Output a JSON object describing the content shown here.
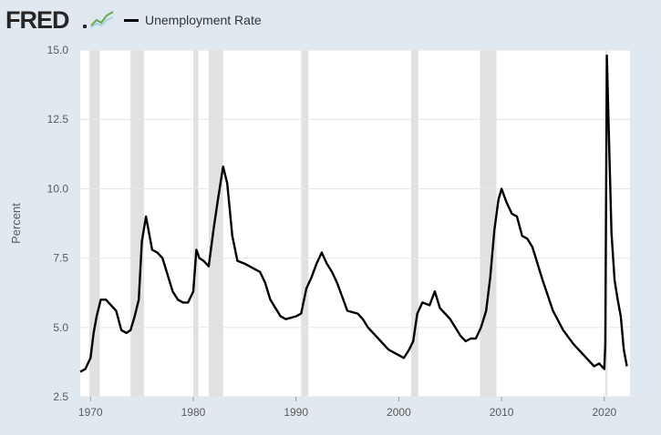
{
  "brand": {
    "name": "FRED"
  },
  "legend": {
    "label": "Unemployment Rate",
    "color": "#000000"
  },
  "colors": {
    "recession": "#e1e1e1",
    "gridline": "#e6e6e6",
    "plot_bg": "#ffffff",
    "page_bg": "#e1e9f0"
  },
  "chart_data": {
    "type": "line",
    "title": "",
    "xlabel": "",
    "ylabel": "Percent",
    "xlim": [
      1969,
      2022.5
    ],
    "ylim": [
      2.5,
      15.0
    ],
    "yticks": [
      "2.5",
      "5.0",
      "7.5",
      "10.0",
      "12.5",
      "15.0"
    ],
    "xticks": [
      "1970",
      "1980",
      "1990",
      "2000",
      "2010",
      "2020"
    ],
    "grid": true,
    "recessions": [
      [
        1969.9,
        1970.9
      ],
      [
        1973.9,
        1975.2
      ],
      [
        1980.0,
        1980.5
      ],
      [
        1981.5,
        1982.9
      ],
      [
        1990.5,
        1991.2
      ],
      [
        2001.2,
        2001.9
      ],
      [
        2007.9,
        2009.5
      ],
      [
        2020.1,
        2020.3
      ]
    ],
    "series": [
      {
        "name": "Unemployment Rate",
        "x": [
          1969.0,
          1969.5,
          1970.0,
          1970.3,
          1970.6,
          1971.0,
          1971.5,
          1972.0,
          1972.5,
          1973.0,
          1973.5,
          1973.9,
          1974.3,
          1974.7,
          1975.0,
          1975.4,
          1975.7,
          1976.0,
          1976.5,
          1977.0,
          1977.5,
          1978.0,
          1978.5,
          1979.0,
          1979.5,
          1980.0,
          1980.3,
          1980.6,
          1981.0,
          1981.5,
          1982.0,
          1982.4,
          1982.9,
          1983.3,
          1983.8,
          1984.3,
          1985.0,
          1986.0,
          1986.5,
          1987.0,
          1987.5,
          1988.0,
          1988.5,
          1989.0,
          1990.0,
          1990.5,
          1991.0,
          1991.5,
          1992.0,
          1992.5,
          1993.0,
          1993.5,
          1994.0,
          1995.0,
          1996.0,
          1996.5,
          1997.0,
          1998.0,
          1999.0,
          2000.0,
          2000.5,
          2001.0,
          2001.4,
          2001.8,
          2002.3,
          2003.0,
          2003.5,
          2004.0,
          2005.0,
          2006.0,
          2006.5,
          2007.0,
          2007.5,
          2008.0,
          2008.5,
          2008.9,
          2009.3,
          2009.7,
          2010.0,
          2010.5,
          2011.0,
          2011.5,
          2012.0,
          2012.5,
          2013.0,
          2014.0,
          2015.0,
          2016.0,
          2017.0,
          2018.0,
          2019.0,
          2019.5,
          2020.0,
          2020.1,
          2020.25,
          2020.5,
          2020.7,
          2021.0,
          2021.3,
          2021.6,
          2021.9,
          2022.2
        ],
        "values": [
          3.4,
          3.5,
          3.9,
          4.8,
          5.4,
          6.0,
          6.0,
          5.8,
          5.6,
          4.9,
          4.8,
          4.9,
          5.4,
          6.0,
          8.1,
          9.0,
          8.4,
          7.8,
          7.7,
          7.5,
          6.9,
          6.3,
          6.0,
          5.9,
          5.9,
          6.3,
          7.8,
          7.5,
          7.4,
          7.2,
          8.6,
          9.6,
          10.8,
          10.2,
          8.3,
          7.4,
          7.3,
          7.1,
          7.0,
          6.6,
          6.0,
          5.7,
          5.4,
          5.3,
          5.4,
          5.5,
          6.4,
          6.8,
          7.3,
          7.7,
          7.3,
          7.0,
          6.6,
          5.6,
          5.5,
          5.3,
          5.0,
          4.6,
          4.2,
          4.0,
          3.9,
          4.2,
          4.5,
          5.5,
          5.9,
          5.8,
          6.3,
          5.7,
          5.3,
          4.7,
          4.5,
          4.6,
          4.6,
          5.0,
          5.6,
          6.8,
          8.5,
          9.6,
          10.0,
          9.5,
          9.1,
          9.0,
          8.3,
          8.2,
          7.9,
          6.7,
          5.6,
          4.9,
          4.4,
          4.0,
          3.6,
          3.7,
          3.5,
          4.4,
          14.8,
          11.1,
          8.4,
          6.7,
          6.0,
          5.4,
          4.2,
          3.6
        ]
      }
    ]
  }
}
